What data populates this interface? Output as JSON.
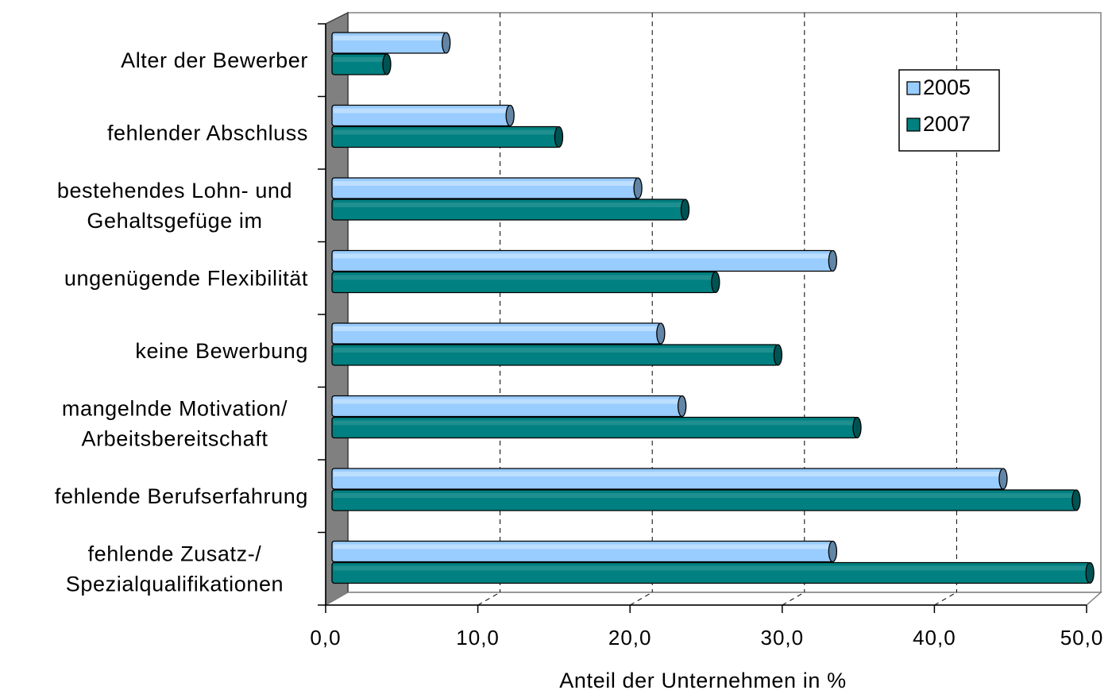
{
  "chart_data": {
    "type": "bar",
    "orientation": "horizontal",
    "style": "3d-cylinder",
    "categories": [
      [
        "Alter der Bewerber"
      ],
      [
        "fehlender Abschluss"
      ],
      [
        "bestehendes Lohn- und",
        "Gehaltsgefüge im"
      ],
      [
        "ungenügende Flexibilität"
      ],
      [
        "keine Bewerbung"
      ],
      [
        "mangelnde Motivation/",
        "Arbeitsbereitschaft"
      ],
      [
        "fehlende Berufserfahrung"
      ],
      [
        "fehlende Zusatz-/",
        "Spezialqualifikationen"
      ]
    ],
    "series": [
      {
        "name": "2005",
        "color": "#99ccff",
        "values": [
          7.5,
          11.7,
          20.1,
          32.9,
          21.6,
          23.0,
          44.1,
          32.9
        ]
      },
      {
        "name": "2007",
        "color": "#008080",
        "values": [
          3.6,
          14.9,
          23.2,
          25.2,
          29.3,
          34.5,
          48.9,
          49.8
        ]
      }
    ],
    "xlabel": "Anteil der Unternehmen in %",
    "ylabel": "",
    "xlim": [
      0,
      50
    ],
    "xticks": [
      "0,0",
      "10,0",
      "20,0",
      "30,0",
      "40,0",
      "50,0"
    ],
    "grid": "vertical dashed",
    "legend": "top-right"
  }
}
